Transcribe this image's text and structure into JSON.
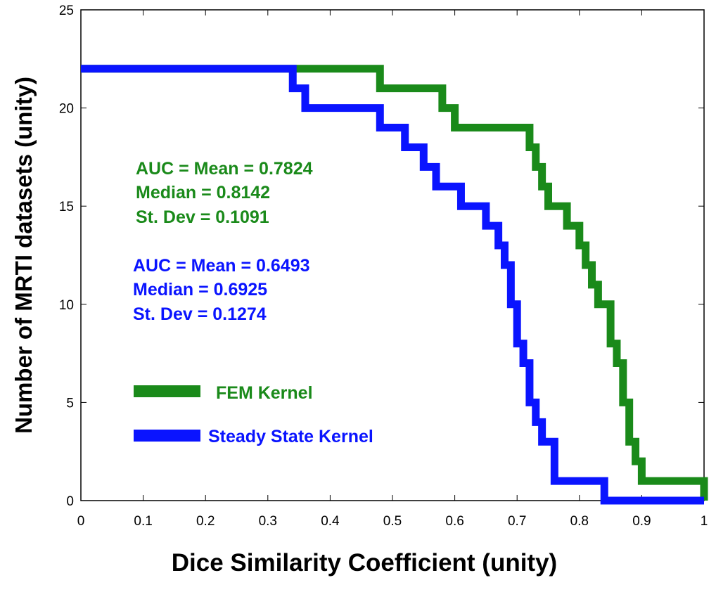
{
  "chart_data": {
    "type": "line",
    "title": "",
    "xlabel": "Dice Similarity Coefficient (unity)",
    "ylabel": "Number of MRTI datasets (unity)",
    "xlim": [
      0,
      1
    ],
    "ylim": [
      0,
      25
    ],
    "xticks": [
      "0",
      "0.1",
      "0.2",
      "0.3",
      "0.4",
      "0.5",
      "0.6",
      "0.7",
      "0.8",
      "0.9",
      "1"
    ],
    "yticks": [
      "0",
      "5",
      "10",
      "15",
      "20",
      "25"
    ],
    "grid": false,
    "legend_position": "left",
    "series": [
      {
        "name": "FEM Kernel",
        "color": "#1a8a1a",
        "step": true,
        "x": [
          0,
          0.48,
          0.48,
          0.57,
          0.58,
          0.59,
          0.6,
          0.71,
          0.72,
          0.73,
          0.74,
          0.75,
          0.76,
          0.78,
          0.79,
          0.8,
          0.81,
          0.82,
          0.83,
          0.84,
          0.85,
          0.86,
          0.87,
          0.88,
          0.89,
          0.9,
          1.0
        ],
        "y": [
          22,
          22,
          21,
          21,
          20,
          20,
          19,
          19,
          18,
          17,
          16,
          15,
          15,
          14,
          14,
          13,
          12,
          11,
          10,
          10,
          8,
          7,
          5,
          3,
          2,
          1,
          0
        ]
      },
      {
        "name": "Steady State Kernel",
        "color": "#0a14ff",
        "step": true,
        "x": [
          0,
          0.34,
          0.35,
          0.36,
          0.47,
          0.48,
          0.5,
          0.52,
          0.53,
          0.55,
          0.57,
          0.58,
          0.59,
          0.61,
          0.62,
          0.63,
          0.65,
          0.66,
          0.67,
          0.68,
          0.69,
          0.7,
          0.71,
          0.72,
          0.73,
          0.74,
          0.75,
          0.76,
          0.84,
          0.89,
          1.0
        ],
        "y": [
          22,
          21,
          21,
          20,
          20,
          19,
          19,
          18,
          18,
          17,
          16,
          16,
          16,
          15,
          15,
          15,
          14,
          14,
          13,
          12,
          10,
          8,
          7,
          5,
          4,
          3,
          3,
          1,
          0,
          0,
          0
        ]
      }
    ],
    "annotations": [
      {
        "color": "#1a8a1a",
        "lines": [
          "AUC = Mean = 0.7824",
          "Median = 0.8142",
          "St. Dev = 0.1091"
        ]
      },
      {
        "color": "#0a14ff",
        "lines": [
          "AUC = Mean = 0.6493",
          "Median = 0.6925",
          "St. Dev = 0.1274"
        ]
      }
    ]
  }
}
